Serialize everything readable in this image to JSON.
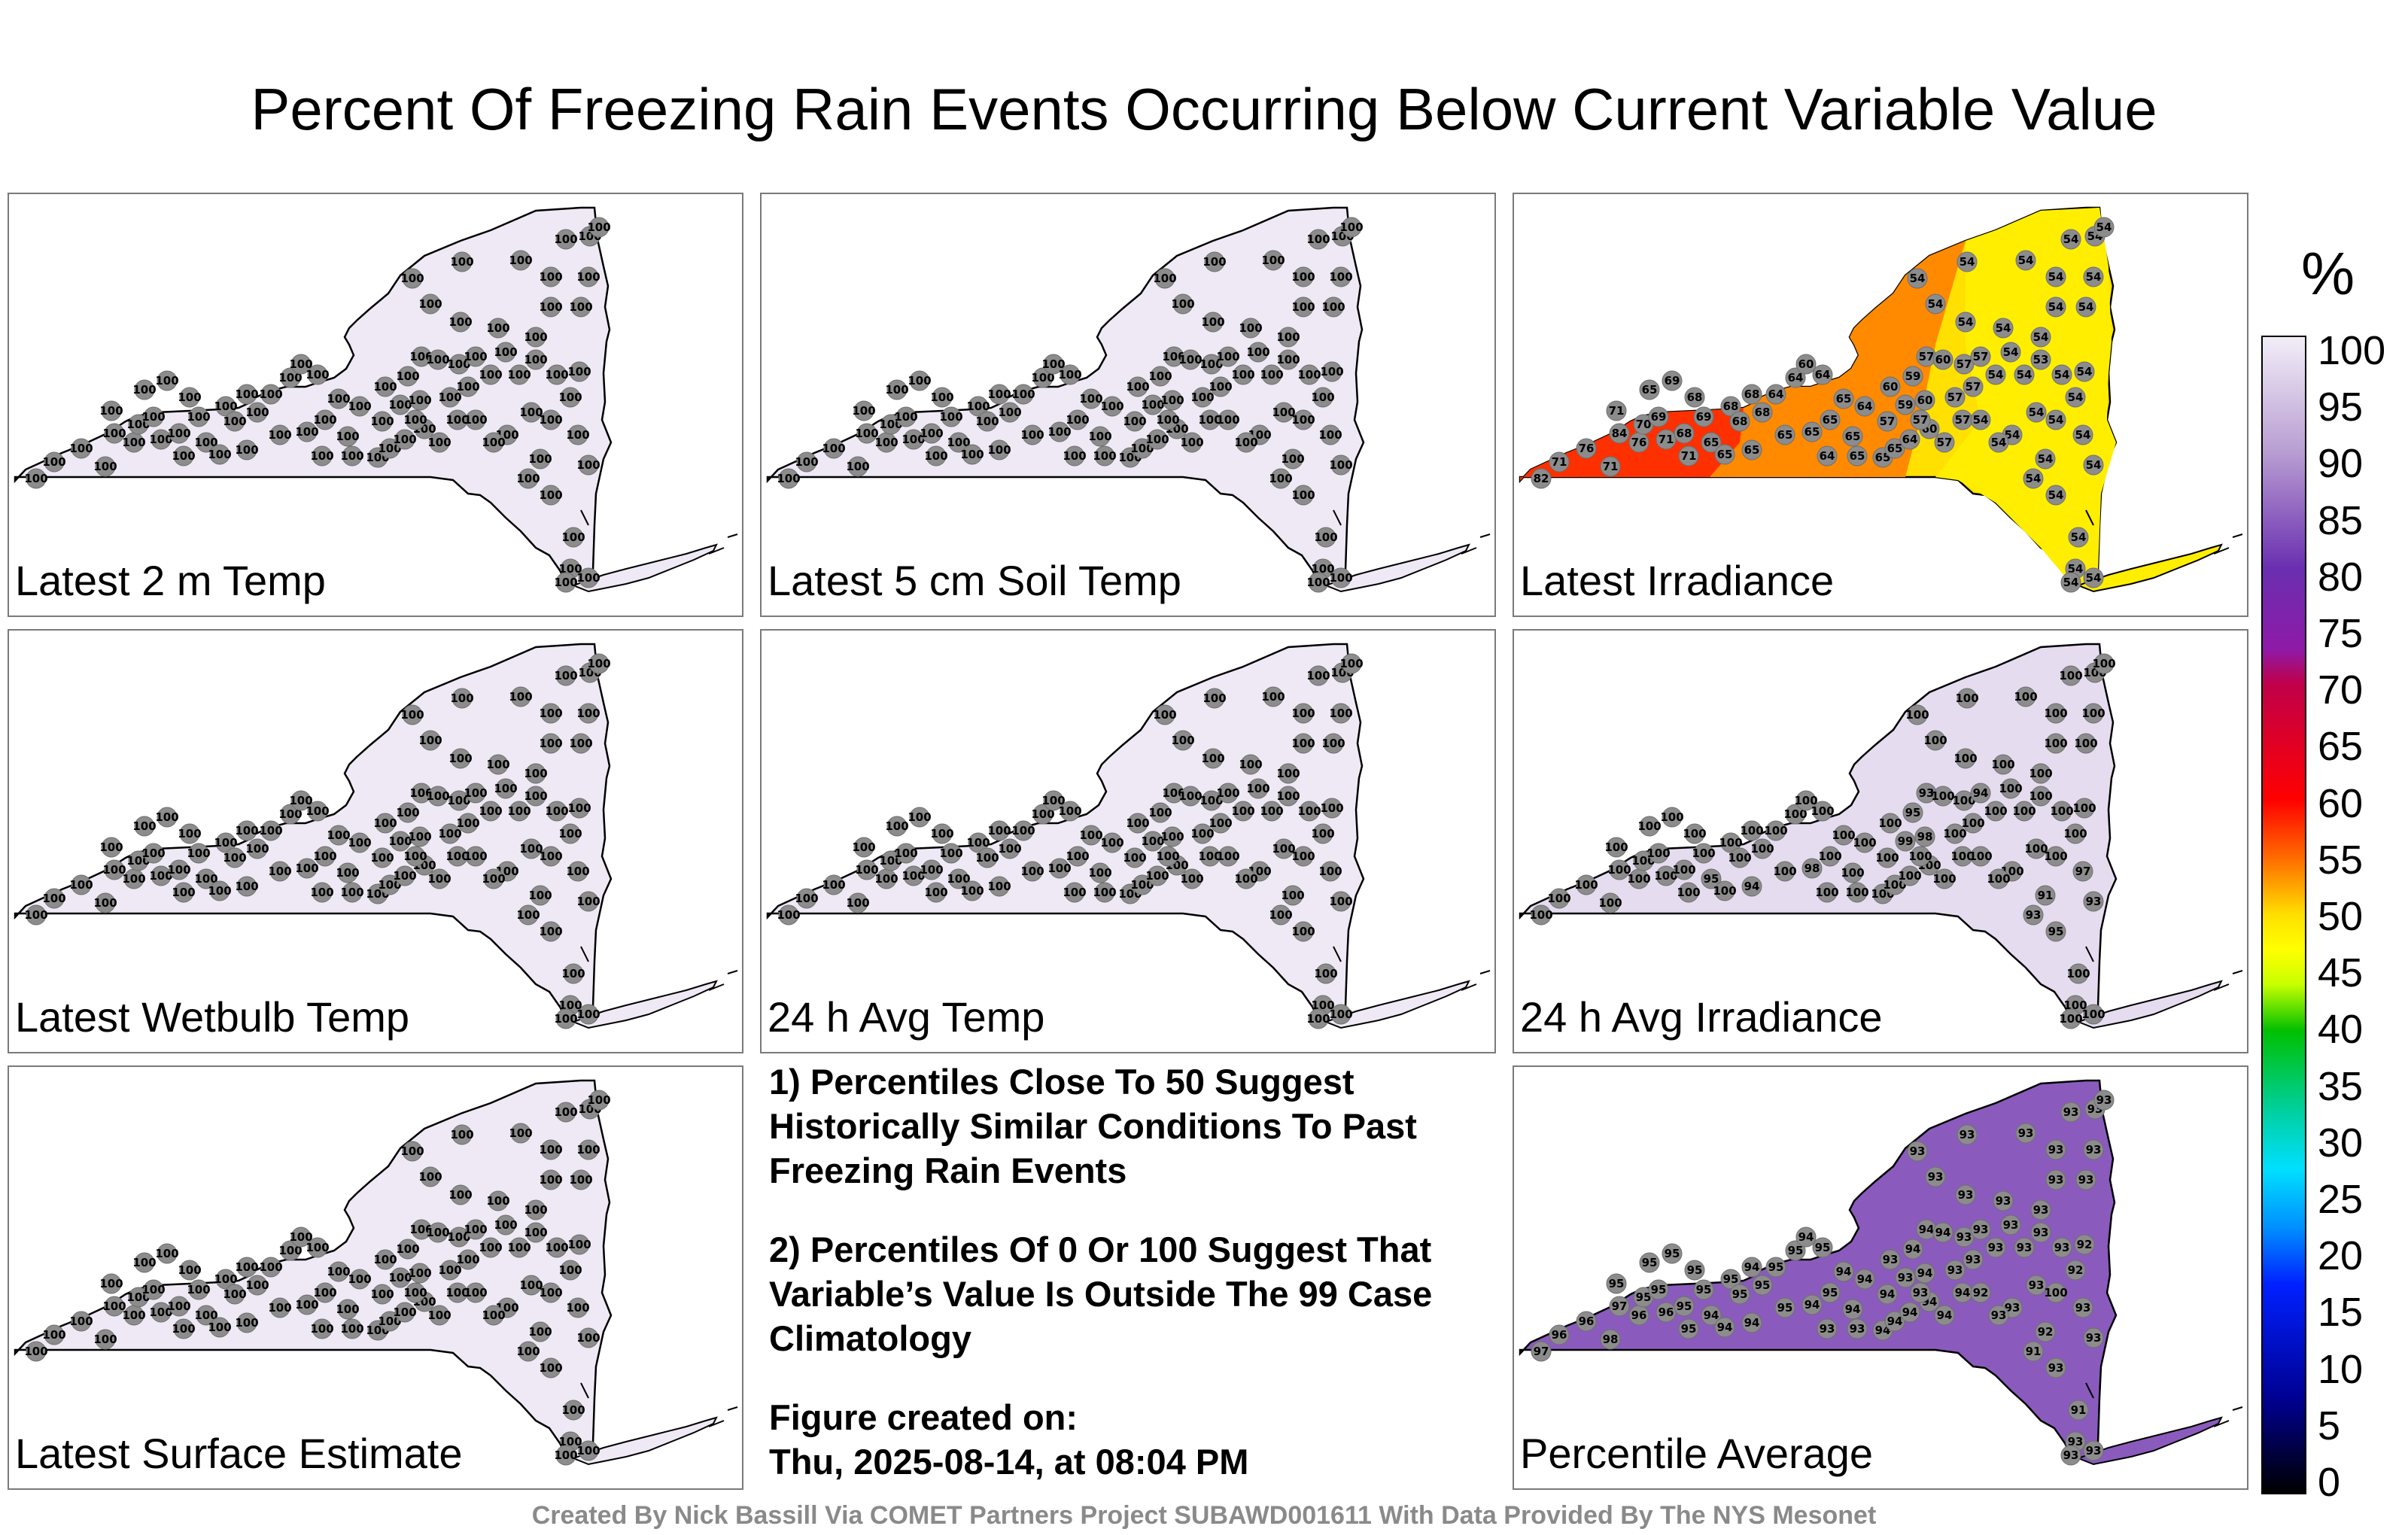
{
  "title": "Percent Of Freezing Rain Events Occurring Below Current Variable Value",
  "colorbar": {
    "unit": "%",
    "ticks": [
      "100",
      "95",
      "90",
      "85",
      "80",
      "75",
      "70",
      "65",
      "60",
      "55",
      "50",
      "45",
      "40",
      "35",
      "30",
      "25",
      "20",
      "15",
      "10",
      "5",
      "0"
    ]
  },
  "panels": [
    {
      "label": "Latest 2 m Temp",
      "fill": "#efe9f5",
      "values": "uniform100"
    },
    {
      "label": "Latest 5 cm Soil Temp",
      "fill": "#efe9f5",
      "values": "uniform100"
    },
    {
      "label": "Latest Irradiance",
      "fill": "#ffe000",
      "values": "irradiance"
    },
    {
      "label": "Latest Wetbulb Temp",
      "fill": "#efe9f5",
      "values": "uniform100"
    },
    {
      "label": "24 h Avg Temp",
      "fill": "#efe9f5",
      "values": "uniform100"
    },
    {
      "label": "24 h Avg Irradiance",
      "fill": "#e6dcef",
      "values": "avgirr"
    },
    {
      "label": "Latest Surface Estimate",
      "fill": "#efe9f5",
      "values": "uniform100"
    },
    {
      "label": "Percentile Average",
      "fill": "#8a5bbd",
      "values": "pctavg"
    }
  ],
  "notes": [
    "1) Percentiles Close To 50 Suggest Historically Similar Conditions To Past Freezing Rain Events",
    "2) Percentiles Of 0 Or 100 Suggest That Variable’s Value Is Outside The 99 Case Climatology",
    "Figure created on:",
    "Thu, 2025-08-14, at 08:04 PM"
  ],
  "footer": "Created By Nick Bassill Via COMET Partners Project SUBAWD001611 With Data Provided By The NYS Mesonet",
  "station_values": {
    "uniform100": [
      "100",
      "100",
      "100",
      "100",
      "100",
      "100",
      "100",
      "100",
      "100",
      "100",
      "100",
      "100",
      "100",
      "100",
      "100",
      "100",
      "100",
      "100",
      "100",
      "100",
      "100",
      "100",
      "100",
      "100",
      "100",
      "100",
      "100",
      "100",
      "100",
      "100",
      "100",
      "100",
      "100",
      "100",
      "100",
      "100",
      "100",
      "100",
      "100",
      "100",
      "100",
      "100",
      "100",
      "100",
      "100",
      "100",
      "100",
      "100",
      "100",
      "100",
      "100",
      "100",
      "100",
      "100",
      "100",
      "100",
      "100",
      "100",
      "100",
      "100",
      "100",
      "100",
      "100",
      "100",
      "100",
      "100",
      "100",
      "100",
      "100",
      "100",
      "100",
      "100",
      "100",
      "100",
      "100",
      "100",
      "100",
      "100",
      "100",
      "100",
      "100",
      "100",
      "100",
      "100",
      "100",
      "100",
      "100",
      "100"
    ],
    "irradiance": [
      "82",
      "71",
      "71",
      "84",
      "76",
      "76",
      "71",
      "70",
      "69",
      "71",
      "71",
      "68",
      "65",
      "68",
      "69",
      "69",
      "68",
      "68",
      "68",
      "65",
      "68",
      "65",
      "65",
      "65",
      "65",
      "64",
      "64",
      "60",
      "64",
      "65",
      "65",
      "65",
      "64",
      "64",
      "65",
      "65",
      "65",
      "64",
      "60",
      "57",
      "59",
      "60",
      "59",
      "57",
      "60",
      "60",
      "57",
      "57",
      "57",
      "57",
      "57",
      "57",
      "57",
      "54",
      "54",
      "54",
      "54",
      "54",
      "54",
      "54",
      "54",
      "54",
      "54",
      "54",
      "54",
      "54",
      "54",
      "54",
      "54",
      "54",
      "54",
      "54",
      "54",
      "54",
      "54",
      "54",
      "54",
      "54",
      "53",
      "54",
      "54",
      "54",
      "54",
      "54",
      "54",
      "54",
      "54",
      "54"
    ],
    "avgirr": [
      "100",
      "100",
      "100",
      "100",
      "100",
      "100",
      "100",
      "100",
      "100",
      "100",
      "100",
      "100",
      "100",
      "100",
      "100",
      "100",
      "100",
      "100",
      "100",
      "95",
      "100",
      "100",
      "94",
      "100",
      "98",
      "100",
      "100",
      "100",
      "100",
      "100",
      "100",
      "100",
      "100",
      "100",
      "100",
      "100",
      "100",
      "100",
      "100",
      "100",
      "99",
      "98",
      "95",
      "93",
      "100",
      "100",
      "100",
      "100",
      "100",
      "100",
      "100",
      "100",
      "94",
      "100",
      "100",
      "100",
      "100",
      "100",
      "100",
      "100",
      "100",
      "100",
      "100",
      "100",
      "100",
      "100",
      "100",
      "100",
      "100",
      "100",
      "100",
      "100",
      "100",
      "100",
      "100",
      "100",
      "100",
      "100",
      "100",
      "97",
      "93",
      "95",
      "100",
      "93",
      "91",
      "100",
      "100",
      "100"
    ],
    "pctavg": [
      "97",
      "96",
      "98",
      "97",
      "96",
      "96",
      "95",
      "95",
      "95",
      "96",
      "95",
      "95",
      "95",
      "95",
      "95",
      "95",
      "95",
      "95",
      "94",
      "94",
      "95",
      "95",
      "94",
      "94",
      "94",
      "95",
      "95",
      "94",
      "95",
      "95",
      "94",
      "94",
      "94",
      "93",
      "93",
      "94",
      "94",
      "94",
      "94",
      "94",
      "93",
      "94",
      "94",
      "94",
      "94",
      "93",
      "93",
      "94",
      "94",
      "93",
      "93",
      "93",
      "93",
      "93",
      "93",
      "93",
      "93",
      "92",
      "93",
      "93",
      "100",
      "92",
      "93",
      "92",
      "93",
      "93",
      "93",
      "93",
      "93",
      "93",
      "93",
      "93",
      "93",
      "93",
      "93",
      "93",
      "93",
      "93",
      "93",
      "93",
      "93",
      "93",
      "91",
      "91",
      "92",
      "93",
      "93",
      "93"
    ]
  }
}
